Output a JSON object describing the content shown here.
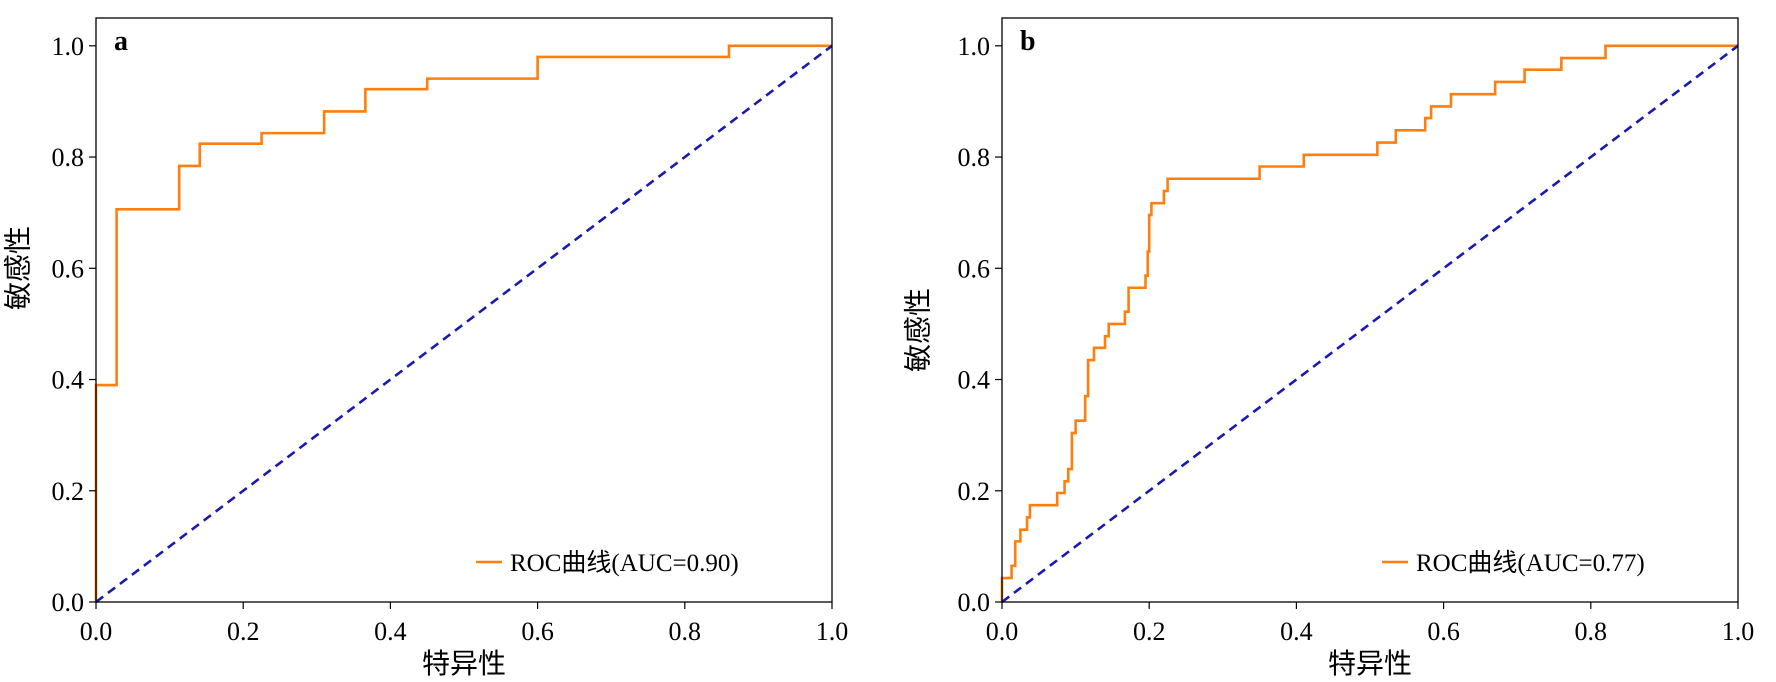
{
  "chart_data": [
    {
      "type": "line",
      "panel_label": "a",
      "xlabel": "特异性",
      "ylabel": "敏感性",
      "xlim": [
        0,
        1
      ],
      "ylim": [
        0,
        1.05
      ],
      "xticks": [
        "0.0",
        "0.2",
        "0.4",
        "0.6",
        "0.8",
        "1.0"
      ],
      "yticks": [
        "0.0",
        "0.2",
        "0.4",
        "0.6",
        "0.8",
        "1.0"
      ],
      "legend_position": "lower right",
      "series": [
        {
          "name": "ROC曲线(AUC=0.90)",
          "color": "#ff7f0e",
          "style": "solid",
          "x": [
            0,
            0,
            0.028,
            0.028,
            0.113,
            0.113,
            0.141,
            0.141,
            0.225,
            0.225,
            0.31,
            0.31,
            0.366,
            0.366,
            0.45,
            0.45,
            0.6,
            0.6,
            0.86,
            0.86,
            1.0
          ],
          "y": [
            0,
            0.39,
            0.39,
            0.706,
            0.706,
            0.784,
            0.784,
            0.824,
            0.824,
            0.843,
            0.843,
            0.882,
            0.882,
            0.922,
            0.922,
            0.941,
            0.941,
            0.98,
            0.98,
            1.0,
            1.0
          ]
        },
        {
          "name": "",
          "color": "#1a1ab0",
          "style": "dashed",
          "x": [
            0,
            1
          ],
          "y": [
            0,
            1
          ]
        }
      ]
    },
    {
      "type": "line",
      "panel_label": "b",
      "xlabel": "特异性",
      "ylabel": "敏感性",
      "xlim": [
        0,
        1
      ],
      "ylim": [
        0,
        1.05
      ],
      "xticks": [
        "0.0",
        "0.2",
        "0.4",
        "0.6",
        "0.8",
        "1.0"
      ],
      "yticks": [
        "0.0",
        "0.2",
        "0.4",
        "0.6",
        "0.8",
        "1.0"
      ],
      "legend_position": "lower right",
      "series": [
        {
          "name": "ROC曲线(AUC=0.77)",
          "color": "#ff7f0e",
          "style": "solid",
          "x": [
            0,
            0,
            0.013,
            0.013,
            0.018,
            0.018,
            0.025,
            0.025,
            0.034,
            0.034,
            0.038,
            0.038,
            0.075,
            0.075,
            0.085,
            0.085,
            0.09,
            0.09,
            0.095,
            0.095,
            0.1,
            0.1,
            0.113,
            0.113,
            0.117,
            0.117,
            0.125,
            0.125,
            0.14,
            0.14,
            0.145,
            0.145,
            0.167,
            0.167,
            0.172,
            0.172,
            0.195,
            0.195,
            0.198,
            0.198,
            0.2,
            0.2,
            0.203,
            0.203,
            0.22,
            0.22,
            0.225,
            0.225,
            0.35,
            0.35,
            0.41,
            0.41,
            0.51,
            0.51,
            0.535,
            0.535,
            0.575,
            0.575,
            0.583,
            0.583,
            0.61,
            0.61,
            0.67,
            0.67,
            0.71,
            0.71,
            0.76,
            0.76,
            0.82,
            0.82,
            1.0
          ],
          "y": [
            0,
            0.043,
            0.043,
            0.065,
            0.065,
            0.109,
            0.109,
            0.13,
            0.13,
            0.152,
            0.152,
            0.174,
            0.174,
            0.196,
            0.196,
            0.217,
            0.217,
            0.239,
            0.239,
            0.304,
            0.304,
            0.326,
            0.326,
            0.37,
            0.37,
            0.435,
            0.435,
            0.457,
            0.457,
            0.478,
            0.478,
            0.5,
            0.5,
            0.522,
            0.522,
            0.565,
            0.565,
            0.587,
            0.587,
            0.63,
            0.63,
            0.696,
            0.696,
            0.717,
            0.717,
            0.739,
            0.739,
            0.761,
            0.761,
            0.783,
            0.783,
            0.804,
            0.804,
            0.826,
            0.826,
            0.848,
            0.848,
            0.87,
            0.87,
            0.891,
            0.891,
            0.913,
            0.913,
            0.935,
            0.935,
            0.957,
            0.957,
            0.978,
            0.978,
            1.0,
            1.0
          ]
        },
        {
          "name": "",
          "color": "#1a1ab0",
          "style": "dashed",
          "x": [
            0,
            1
          ],
          "y": [
            0,
            1
          ]
        }
      ]
    }
  ]
}
